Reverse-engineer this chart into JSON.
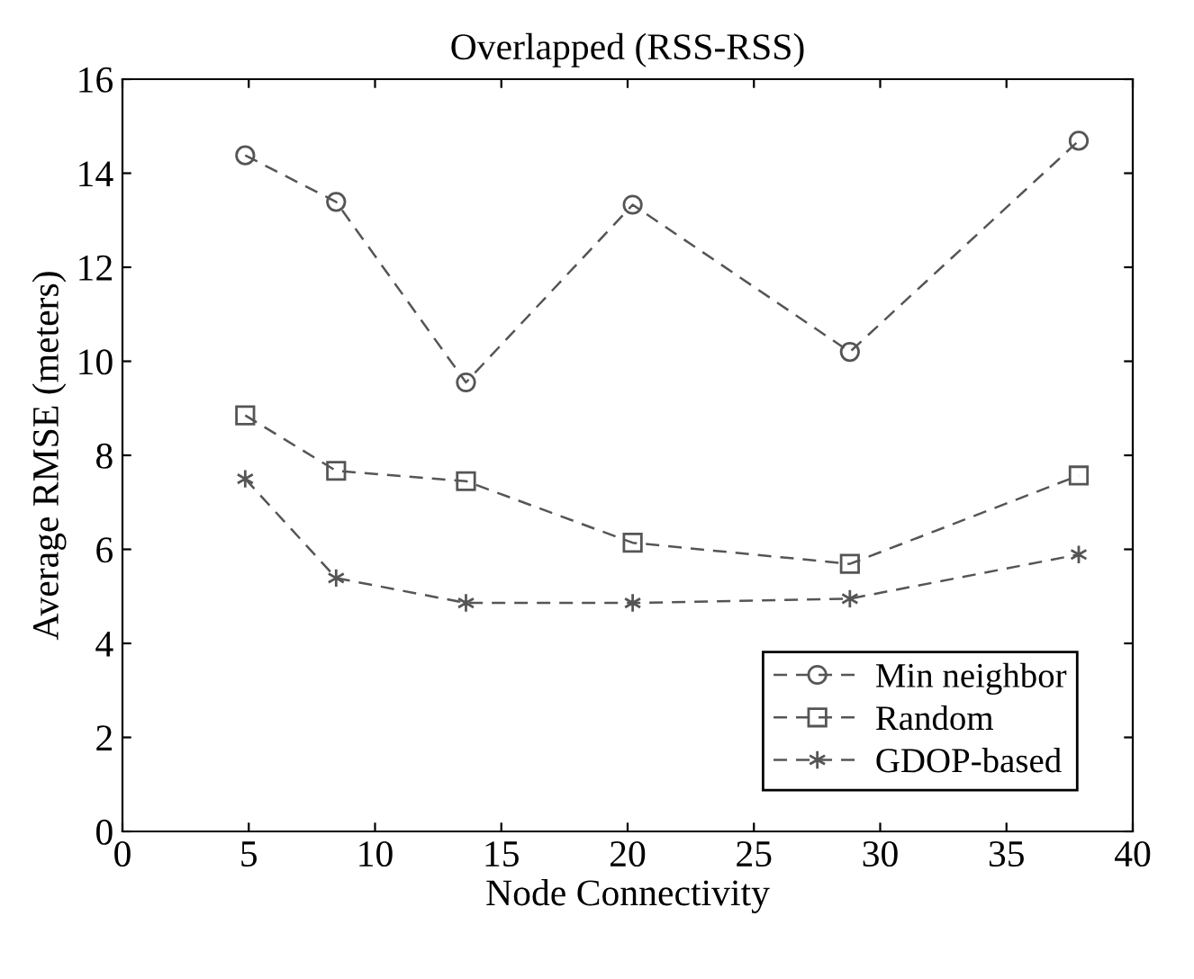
{
  "chart_data": {
    "type": "line",
    "title": "Overlapped (RSS-RSS)",
    "xlabel": "Node Connectivity",
    "ylabel": "Average RMSE (meters)",
    "xlim": [
      0,
      40
    ],
    "xticks": [
      0,
      5,
      10,
      15,
      20,
      25,
      30,
      35,
      40
    ],
    "ylim": [
      0,
      16
    ],
    "yticks": [
      0,
      2,
      4,
      6,
      8,
      10,
      12,
      14,
      16
    ],
    "grid": false,
    "legend": "bottom right",
    "line_style": "dashed",
    "series": [
      {
        "name": "Min neighbor",
        "color": "#555555",
        "marker": "circle",
        "x": [
          4.86,
          8.46,
          13.6,
          20.2,
          28.8,
          37.86
        ],
        "values": [
          14.38,
          13.39,
          9.55,
          13.33,
          10.2,
          14.69
        ]
      },
      {
        "name": "Random",
        "color": "#555555",
        "marker": "square",
        "x": [
          4.86,
          8.46,
          13.6,
          20.2,
          28.8,
          37.86
        ],
        "values": [
          8.85,
          7.67,
          7.45,
          6.14,
          5.69,
          7.57
        ]
      },
      {
        "name": "GDOP-based",
        "color": "#555555",
        "marker": "cross",
        "x": [
          4.86,
          8.46,
          13.6,
          20.2,
          28.8,
          37.86
        ],
        "values": [
          7.5,
          5.39,
          4.86,
          4.86,
          4.95,
          5.89
        ]
      }
    ]
  }
}
